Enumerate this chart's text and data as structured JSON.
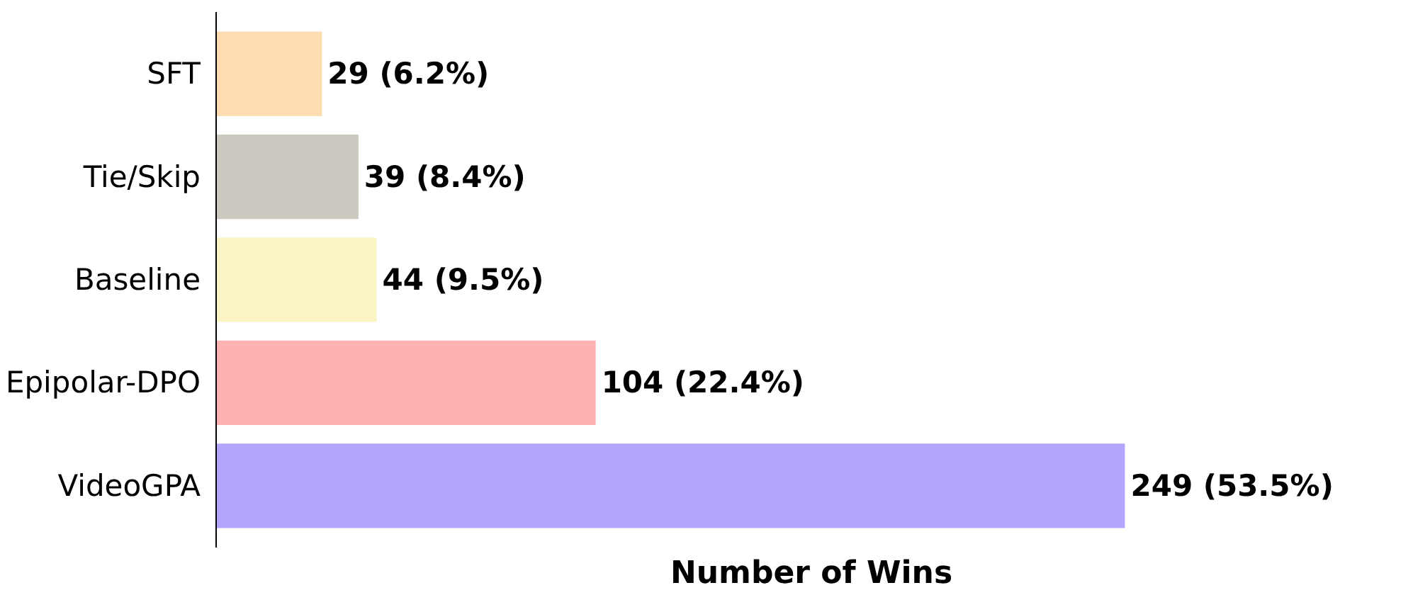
{
  "chart_data": {
    "type": "bar",
    "orientation": "horizontal",
    "xlabel": "Number of Wins",
    "categories": [
      "SFT",
      "Tie/Skip",
      "Baseline",
      "Epipolar-DPO",
      "VideoGPA"
    ],
    "values": [
      29,
      39,
      44,
      104,
      249
    ],
    "colors": [
      "#fddcb0",
      "#cdc9c0",
      "#fbf5c6",
      "#feb2b2",
      "#b3a6fd"
    ],
    "value_labels": [
      "29 (6.2%)",
      "39 (8.4%)",
      "44 (9.5%)",
      "104 (22.4%)",
      "249 (53.5%)"
    ],
    "tick_labels": "y",
    "grid": false
  }
}
